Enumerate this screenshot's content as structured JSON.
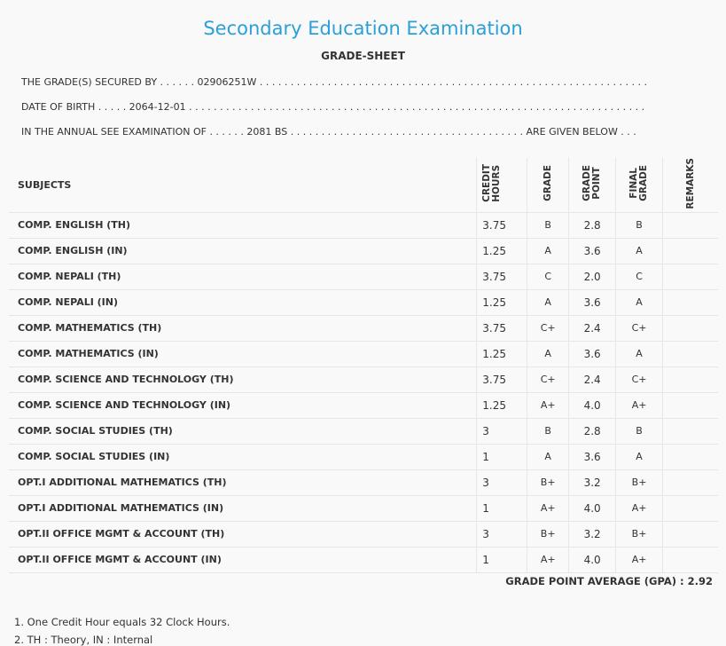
{
  "header": {
    "title": "Secondary Education Examination",
    "subtitle": "GRADE-SHEET"
  },
  "info": {
    "secured_by": "THE GRADE(S) SECURED BY . . . . . . 02906251W . . . . . . . . . . . . . . . . . . . . . . . . . . . . . . . . . . . . . . . . . . . . . . . . . . . . . . . . . . . . . . .",
    "dob": "DATE OF BIRTH . . . . . 2064-12-01 . . . . . . . . . . . . . . . . . . . . . . . . . . . . . . . . . . . . . . . . . . . . . . . . . . . . . . . . . . . . . . . . . . . . . . . . . .",
    "exam": "IN THE ANNUAL SEE EXAMINATION OF . . . . . . 2081 BS . . . . . . . . . . . . . . . . . . . . . . . . . . . . . . . . . . . . . . ARE GIVEN BELOW . . ."
  },
  "table": {
    "headers": {
      "subjects": "SUBJECTS",
      "credit_hours": "CREDIT\nHOURS",
      "grade": "GRADE",
      "grade_point": "GRADE\nPOINT",
      "final_grade": "FINAL\nGRADE",
      "remarks": "REMARKS"
    },
    "rows": [
      {
        "subject": "COMP. ENGLISH (TH)",
        "credit": "3.75",
        "grade": "B",
        "gp": "2.8",
        "final": "B",
        "remarks": ""
      },
      {
        "subject": "COMP. ENGLISH (IN)",
        "credit": "1.25",
        "grade": "A",
        "gp": "3.6",
        "final": "A",
        "remarks": ""
      },
      {
        "subject": "COMP. NEPALI (TH)",
        "credit": "3.75",
        "grade": "C",
        "gp": "2.0",
        "final": "C",
        "remarks": ""
      },
      {
        "subject": "COMP. NEPALI (IN)",
        "credit": "1.25",
        "grade": "A",
        "gp": "3.6",
        "final": "A",
        "remarks": ""
      },
      {
        "subject": "COMP. MATHEMATICS (TH)",
        "credit": "3.75",
        "grade": "C+",
        "gp": "2.4",
        "final": "C+",
        "remarks": ""
      },
      {
        "subject": "COMP. MATHEMATICS (IN)",
        "credit": "1.25",
        "grade": "A",
        "gp": "3.6",
        "final": "A",
        "remarks": ""
      },
      {
        "subject": "COMP. SCIENCE AND TECHNOLOGY (TH)",
        "credit": "3.75",
        "grade": "C+",
        "gp": "2.4",
        "final": "C+",
        "remarks": ""
      },
      {
        "subject": "COMP. SCIENCE AND TECHNOLOGY (IN)",
        "credit": "1.25",
        "grade": "A+",
        "gp": "4.0",
        "final": "A+",
        "remarks": ""
      },
      {
        "subject": "COMP. SOCIAL STUDIES (TH)",
        "credit": "3",
        "grade": "B",
        "gp": "2.8",
        "final": "B",
        "remarks": ""
      },
      {
        "subject": "COMP. SOCIAL STUDIES (IN)",
        "credit": "1",
        "grade": "A",
        "gp": "3.6",
        "final": "A",
        "remarks": ""
      },
      {
        "subject": "OPT.I ADDITIONAL MATHEMATICS (TH)",
        "credit": "3",
        "grade": "B+",
        "gp": "3.2",
        "final": "B+",
        "remarks": ""
      },
      {
        "subject": "OPT.I ADDITIONAL MATHEMATICS (IN)",
        "credit": "1",
        "grade": "A+",
        "gp": "4.0",
        "final": "A+",
        "remarks": ""
      },
      {
        "subject": "OPT.II OFFICE MGMT & ACCOUNT (TH)",
        "credit": "3",
        "grade": "B+",
        "gp": "3.2",
        "final": "B+",
        "remarks": ""
      },
      {
        "subject": "OPT.II OFFICE MGMT & ACCOUNT (IN)",
        "credit": "1",
        "grade": "A+",
        "gp": "4.0",
        "final": "A+",
        "remarks": ""
      }
    ]
  },
  "gpa": "GRADE POINT AVERAGE (GPA) : 2.92",
  "notes": [
    "1. One Credit Hour equals 32 Clock Hours.",
    "2. TH : Theory, IN : Internal"
  ],
  "colors": {
    "title": "#2a9fd8",
    "text": "#333333",
    "background": "#f9f9f9",
    "rule": "#e6e6e6"
  }
}
